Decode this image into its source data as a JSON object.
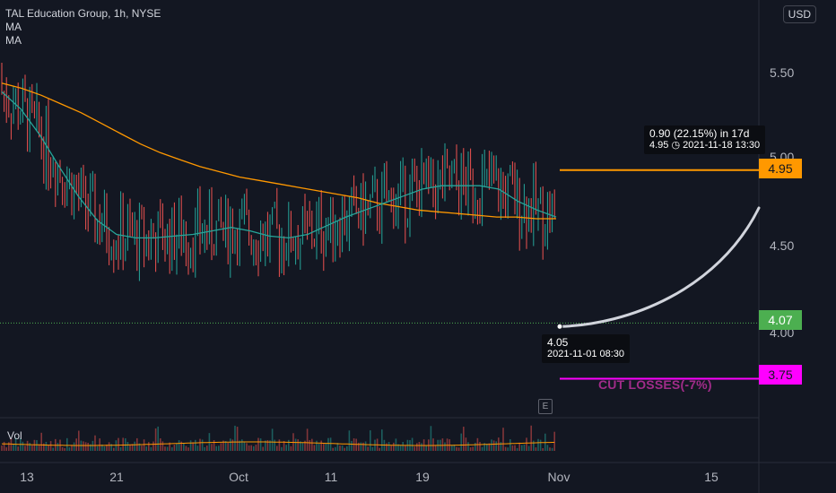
{
  "legend": {
    "symbol": "TAL Education Group, 1h, NYSE",
    "ma1": "MA",
    "ma2": "MA"
  },
  "currency": "USD",
  "price_axis_ticks": [
    "5.50",
    "5.00",
    "4.50",
    "4.00"
  ],
  "price_boxes": {
    "target": {
      "label": "4.95",
      "color": "#ff9800"
    },
    "current": {
      "label": "4.07",
      "color": "#4caf50"
    },
    "stop": {
      "label": "3.75",
      "color": "#ff00ff"
    }
  },
  "tooltips": {
    "target_line1": "0.90 (22.15%) in 17d",
    "target_line2": "4.95 ◷ 2021-11-18  13:30",
    "start_line1": "4.05",
    "start_line2": "2021-11-01 08:30"
  },
  "annotations": {
    "cut_losses": "CUT LOSSES(-7%)",
    "earnings_badge": "E"
  },
  "volume_label": "Vol",
  "x_axis_ticks": [
    "13",
    "21",
    "Oct",
    "11",
    "19",
    "Nov",
    "15"
  ],
  "chart_data": {
    "type": "line",
    "series": [
      {
        "name": "",
        "color": "#ff9800",
        "values": [
          5.45,
          5.42,
          5.38,
          5.33,
          5.28,
          5.22,
          5.16,
          5.1,
          5.05,
          5.01,
          4.97,
          4.94,
          4.91,
          4.89,
          4.87,
          4.85,
          4.83,
          4.81,
          4.79,
          4.76,
          4.74,
          4.72,
          4.71,
          4.7,
          4.69,
          4.68,
          4.68,
          4.67,
          4.67
        ]
      },
      {
        "name": "",
        "color": "#26a69a",
        "values": [
          5.4,
          5.3,
          5.15,
          4.97,
          4.8,
          4.66,
          4.58,
          4.56,
          4.56,
          4.57,
          4.58,
          4.6,
          4.62,
          4.6,
          4.57,
          4.56,
          4.58,
          4.63,
          4.68,
          4.72,
          4.76,
          4.8,
          4.84,
          4.86,
          4.86,
          4.86,
          4.84,
          4.77,
          4.72,
          4.68
        ]
      }
    ],
    "price_levels": {
      "target": 4.95,
      "current": 4.07,
      "stop": 3.75,
      "start": 4.05
    },
    "ylim": [
      3.5,
      5.9
    ],
    "price_range": {
      "low": 4.18,
      "high": 5.36
    }
  }
}
